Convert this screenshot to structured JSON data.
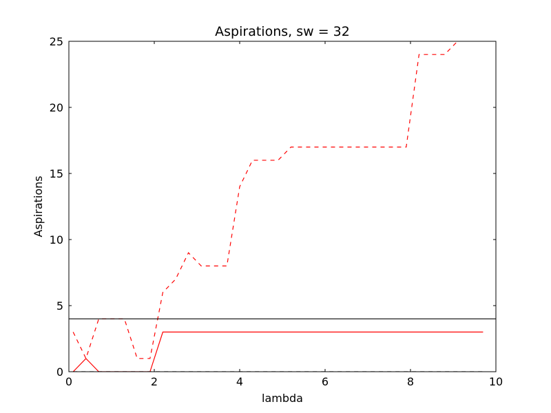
{
  "chart_data": {
    "type": "line",
    "title": "Aspirations, sw = 32",
    "xlabel": "lambda",
    "ylabel": "Aspirations",
    "xlim": [
      0,
      10
    ],
    "ylim": [
      0,
      25
    ],
    "grid": false,
    "x_ticks": [
      0,
      2,
      4,
      6,
      8,
      10
    ],
    "x_tick_labels": [
      "0",
      "2",
      "4",
      "6",
      "8",
      "10"
    ],
    "y_ticks": [
      0,
      5,
      10,
      15,
      20,
      25
    ],
    "y_tick_labels": [
      "0",
      "5",
      "10",
      "15",
      "20",
      "25"
    ],
    "hlines": [
      {
        "name": "threshold",
        "y": 4,
        "color": "#000000",
        "style": "solid"
      }
    ],
    "series": [
      {
        "name": "red-dashed",
        "color": "#ff0000",
        "style": "dashed",
        "x": [
          0.1,
          0.4,
          0.7,
          1.0,
          1.3,
          1.6,
          1.9,
          2.2,
          2.5,
          2.8,
          3.1,
          3.4,
          3.7,
          4.0,
          4.3,
          4.6,
          4.9,
          5.2,
          5.5,
          5.8,
          6.1,
          6.4,
          6.7,
          7.0,
          7.3,
          7.6,
          7.9,
          8.2,
          8.5,
          8.8,
          9.1,
          9.4,
          9.7
        ],
        "values": [
          3,
          1,
          4,
          4,
          4,
          1,
          1,
          6,
          7,
          9,
          8,
          8,
          8,
          14,
          16,
          16,
          16,
          17,
          17,
          17,
          17,
          17,
          17,
          17,
          17,
          17,
          17,
          24,
          24,
          24,
          25,
          26,
          27
        ]
      },
      {
        "name": "red-solid",
        "color": "#ff0000",
        "style": "solid",
        "x": [
          0.1,
          0.4,
          0.7,
          1.0,
          1.3,
          1.6,
          1.9,
          2.2,
          2.5,
          2.8,
          3.1,
          3.4,
          3.7,
          4.0,
          4.3,
          4.6,
          4.9,
          5.2,
          5.5,
          5.8,
          6.1,
          6.4,
          6.7,
          7.0,
          7.3,
          7.6,
          7.9,
          8.2,
          8.5,
          8.8,
          9.1,
          9.4,
          9.7
        ],
        "values": [
          0,
          1,
          0,
          0,
          0,
          0,
          0,
          3,
          3,
          3,
          3,
          3,
          3,
          3,
          3,
          3,
          3,
          3,
          3,
          3,
          3,
          3,
          3,
          3,
          3,
          3,
          3,
          3,
          3,
          3,
          3,
          3,
          3
        ]
      },
      {
        "name": "black-dashed",
        "color": "#000000",
        "style": "dashed",
        "x": [
          0.1,
          9.7
        ],
        "values": [
          0,
          0
        ]
      }
    ]
  }
}
